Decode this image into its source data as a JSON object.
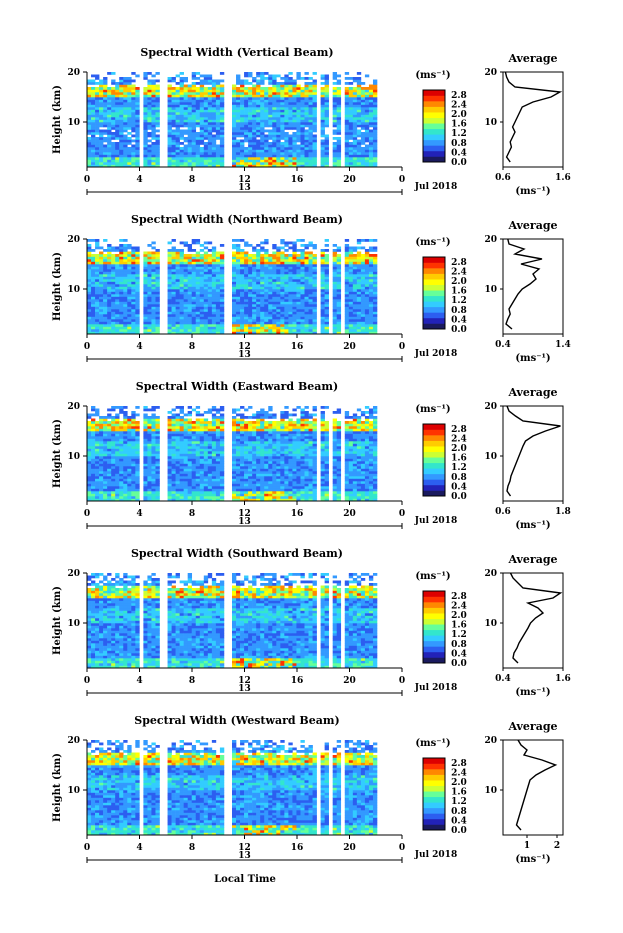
{
  "figure": {
    "xlabel": "Local Time",
    "date_label": "Jul 2018",
    "day_label": "13",
    "avg_xlabel": "(ms⁻¹)",
    "cbar_unit": "(ms⁻¹)"
  },
  "colors": {
    "colormap": [
      "#1a1a5e",
      "#2222b8",
      "#2c5ef0",
      "#3399ff",
      "#33ccff",
      "#33e6cc",
      "#66ff99",
      "#ccff33",
      "#ffff00",
      "#ffcc00",
      "#ff8800",
      "#ff3300",
      "#dd0000"
    ],
    "background": "#ffffff",
    "avg_line": "#000000"
  },
  "chart_data": [
    {
      "type": "heatmap",
      "title": "Spectral Width (Vertical Beam)",
      "ylabel": "Height (km)",
      "x_ticks": [
        "0",
        "4",
        "8",
        "12",
        "16",
        "20",
        "0"
      ],
      "y_ticks": [
        "10",
        "20"
      ],
      "xlim": [
        0,
        24
      ],
      "ylim": [
        1,
        20
      ],
      "data_gaps_hours": [
        4.1,
        5.8,
        10.8,
        17.6,
        18.6,
        19.5
      ],
      "colorbar": {
        "ticks": [
          "0.0",
          "0.4",
          "0.8",
          "1.2",
          "1.6",
          "2.0",
          "2.4",
          "2.8"
        ],
        "range": [
          0,
          3.0
        ]
      },
      "average": {
        "title": "Average",
        "xlim": [
          0.6,
          1.6
        ],
        "x_ticks": [
          "0.6",
          "1.6"
        ],
        "y_ticks": [
          "10",
          "20"
        ],
        "height": [
          2,
          3,
          4,
          5,
          6,
          7,
          8,
          9,
          10,
          11,
          12,
          13,
          14,
          15,
          16,
          17,
          18,
          19,
          20
        ],
        "values": [
          0.72,
          0.66,
          0.7,
          0.74,
          0.72,
          0.76,
          0.8,
          0.76,
          0.8,
          0.84,
          0.88,
          0.92,
          1.1,
          1.4,
          1.55,
          0.8,
          0.7,
          0.66,
          0.64
        ]
      }
    },
    {
      "type": "heatmap",
      "title": "Spectral Width (Northward Beam)",
      "ylabel": "Height (km)",
      "x_ticks": [
        "0",
        "4",
        "8",
        "12",
        "16",
        "20",
        "0"
      ],
      "y_ticks": [
        "10",
        "20"
      ],
      "xlim": [
        0,
        24
      ],
      "ylim": [
        1,
        20
      ],
      "data_gaps_hours": [
        4.1,
        5.8,
        10.8,
        17.6,
        18.6,
        19.5
      ],
      "colorbar": {
        "ticks": [
          "0.0",
          "0.4",
          "0.8",
          "1.2",
          "1.6",
          "2.0",
          "2.4",
          "2.8"
        ],
        "range": [
          0,
          3.0
        ]
      },
      "average": {
        "title": "Average",
        "xlim": [
          0.4,
          1.4
        ],
        "x_ticks": [
          "0.4",
          "1.4"
        ],
        "y_ticks": [
          "10",
          "20"
        ],
        "height": [
          2,
          3,
          4,
          5,
          6,
          7,
          8,
          9,
          10,
          11,
          12,
          13,
          14,
          15,
          16,
          17,
          18,
          19,
          20
        ],
        "values": [
          0.55,
          0.45,
          0.48,
          0.52,
          0.5,
          0.55,
          0.6,
          0.65,
          0.72,
          0.85,
          0.95,
          0.9,
          1.0,
          0.7,
          1.05,
          0.6,
          0.75,
          0.5,
          0.48
        ]
      }
    },
    {
      "type": "heatmap",
      "title": "Spectral Width (Eastward Beam)",
      "ylabel": "Height (km)",
      "x_ticks": [
        "0",
        "4",
        "8",
        "12",
        "16",
        "20",
        "0"
      ],
      "y_ticks": [
        "10",
        "20"
      ],
      "xlim": [
        0,
        24
      ],
      "ylim": [
        1,
        20
      ],
      "data_gaps_hours": [
        4.1,
        5.8,
        10.8,
        17.6,
        18.6,
        19.5
      ],
      "colorbar": {
        "ticks": [
          "0.0",
          "0.4",
          "0.8",
          "1.2",
          "1.6",
          "2.0",
          "2.4",
          "2.8"
        ],
        "range": [
          0,
          3.0
        ]
      },
      "average": {
        "title": "Average",
        "xlim": [
          0.6,
          1.8
        ],
        "x_ticks": [
          "0.6",
          "1.8"
        ],
        "y_ticks": [
          "10",
          "20"
        ],
        "height": [
          2,
          3,
          4,
          5,
          6,
          7,
          8,
          9,
          10,
          11,
          12,
          13,
          14,
          15,
          16,
          17,
          18,
          19,
          20
        ],
        "values": [
          0.75,
          0.68,
          0.7,
          0.74,
          0.76,
          0.8,
          0.84,
          0.88,
          0.92,
          0.96,
          1.0,
          1.05,
          1.2,
          1.45,
          1.75,
          1.0,
          0.85,
          0.72,
          0.68
        ]
      }
    },
    {
      "type": "heatmap",
      "title": "Spectral Width (Southward Beam)",
      "ylabel": "Height (km)",
      "x_ticks": [
        "0",
        "4",
        "8",
        "12",
        "16",
        "20",
        "0"
      ],
      "y_ticks": [
        "10",
        "20"
      ],
      "xlim": [
        0,
        24
      ],
      "ylim": [
        1,
        20
      ],
      "data_gaps_hours": [
        4.1,
        5.8,
        10.8,
        17.6,
        18.6,
        19.5
      ],
      "colorbar": {
        "ticks": [
          "0.0",
          "0.4",
          "0.8",
          "1.2",
          "1.6",
          "2.0",
          "2.4",
          "2.8"
        ],
        "range": [
          0,
          3.0
        ]
      },
      "average": {
        "title": "Average",
        "xlim": [
          0.4,
          1.6
        ],
        "x_ticks": [
          "0.4",
          "1.6"
        ],
        "y_ticks": [
          "10",
          "20"
        ],
        "height": [
          2,
          3,
          4,
          5,
          6,
          7,
          8,
          9,
          10,
          11,
          12,
          13,
          14,
          15,
          16,
          17,
          18,
          19,
          20
        ],
        "values": [
          0.7,
          0.6,
          0.62,
          0.68,
          0.72,
          0.78,
          0.84,
          0.9,
          0.95,
          1.05,
          1.2,
          1.1,
          0.9,
          1.4,
          1.55,
          0.8,
          0.7,
          0.6,
          0.55
        ]
      }
    },
    {
      "type": "heatmap",
      "title": "Spectral Width (Westward Beam)",
      "ylabel": "Height (km)",
      "x_ticks": [
        "0",
        "4",
        "8",
        "12",
        "16",
        "20",
        "0"
      ],
      "y_ticks": [
        "10",
        "20"
      ],
      "xlim": [
        0,
        24
      ],
      "ylim": [
        1,
        20
      ],
      "data_gaps_hours": [
        4.1,
        5.8,
        10.8,
        17.6,
        18.6,
        19.5
      ],
      "colorbar": {
        "ticks": [
          "0.0",
          "0.4",
          "0.8",
          "1.2",
          "1.6",
          "2.0",
          "2.4",
          "2.8"
        ],
        "range": [
          0,
          3.0
        ]
      },
      "average": {
        "title": "Average",
        "xlim": [
          0.2,
          2.2
        ],
        "x_ticks": [
          "1",
          "2"
        ],
        "y_ticks": [
          "10",
          "20"
        ],
        "height": [
          2,
          3,
          4,
          5,
          6,
          7,
          8,
          9,
          10,
          11,
          12,
          13,
          14,
          15,
          16,
          17,
          18,
          19,
          20
        ],
        "values": [
          0.8,
          0.65,
          0.7,
          0.75,
          0.8,
          0.85,
          0.9,
          0.95,
          1.0,
          1.05,
          1.1,
          1.3,
          1.6,
          1.95,
          1.5,
          0.9,
          1.0,
          0.8,
          0.7
        ]
      }
    }
  ]
}
